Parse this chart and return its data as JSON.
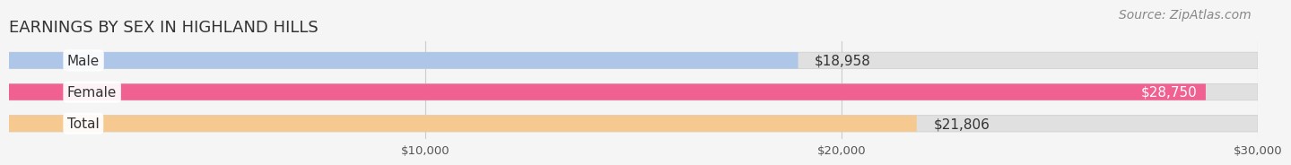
{
  "title": "EARNINGS BY SEX IN HIGHLAND HILLS",
  "source": "Source: ZipAtlas.com",
  "categories": [
    "Male",
    "Female",
    "Total"
  ],
  "values": [
    18958,
    28750,
    21806
  ],
  "max_value": 30000,
  "bar_colors": [
    "#aec6e8",
    "#f06090",
    "#f5c990"
  ],
  "bar_bg_color": "#e0e0e0",
  "label_bg_colors": [
    "#ffffff",
    "#ffffff",
    "#ffffff"
  ],
  "label_colors": [
    "#333333",
    "#ffffff",
    "#333333"
  ],
  "value_labels": [
    "$18,958",
    "$28,750",
    "$21,806"
  ],
  "value_label_inside": [
    false,
    true,
    false
  ],
  "xticks": [
    10000,
    20000,
    30000
  ],
  "xtick_labels": [
    "$10,000",
    "$20,000",
    "$30,000"
  ],
  "title_fontsize": 13,
  "source_fontsize": 10,
  "cat_label_fontsize": 11,
  "value_label_fontsize": 11,
  "background_color": "#f5f5f5",
  "bar_height": 0.52,
  "rounding_size": 0.22
}
